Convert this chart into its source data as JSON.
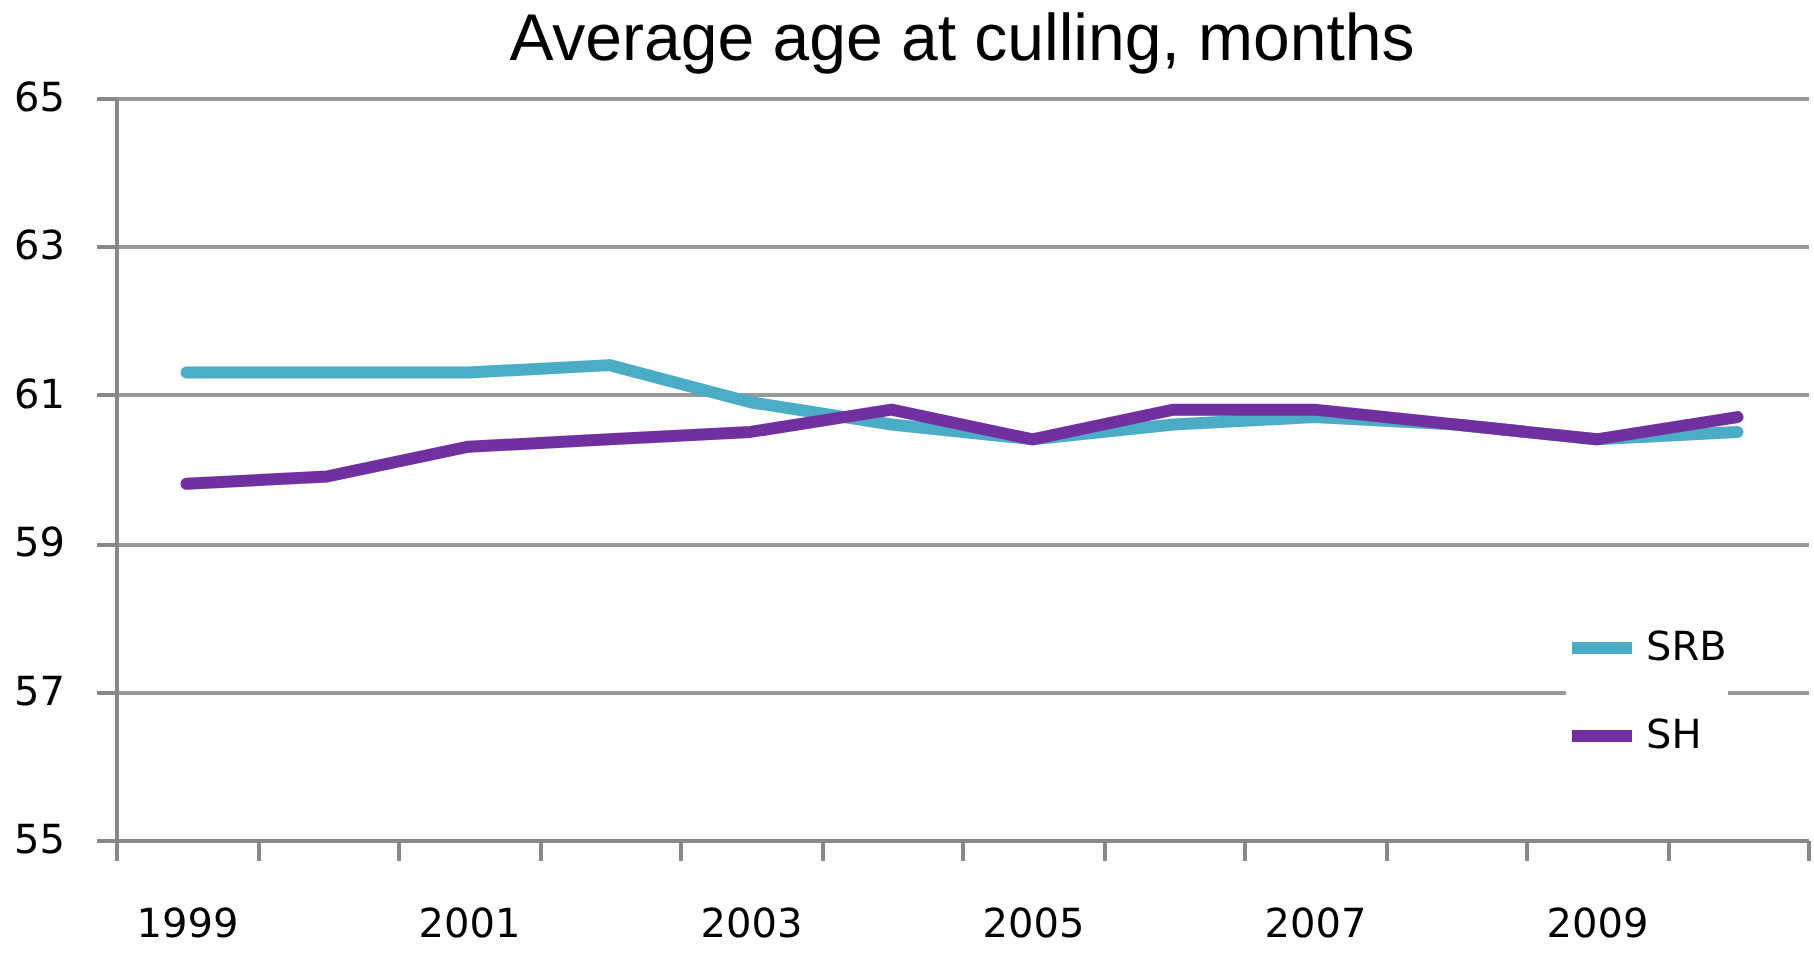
{
  "chart_data": {
    "type": "line",
    "title": "Average age at culling, months",
    "categories": [
      "1999",
      null,
      "2001",
      null,
      "2003",
      null,
      "2005",
      null,
      "2007",
      null,
      "2009",
      null
    ],
    "series": [
      {
        "name": "SRB",
        "color": "#4bacc6",
        "values": [
          61.3,
          61.3,
          61.3,
          61.4,
          60.9,
          60.6,
          60.4,
          60.6,
          60.7,
          60.6,
          60.4,
          60.5
        ]
      },
      {
        "name": "SH",
        "color": "#7030a0",
        "values": [
          59.8,
          59.9,
          60.3,
          60.4,
          60.5,
          60.8,
          60.4,
          60.8,
          60.8,
          60.6,
          60.4,
          60.7
        ]
      }
    ],
    "ylim": [
      55,
      65
    ],
    "yticks": [
      55,
      57,
      59,
      61,
      63,
      65
    ],
    "grid": "y",
    "legend": "bottom right",
    "marker": "none",
    "line_style": "solid"
  }
}
